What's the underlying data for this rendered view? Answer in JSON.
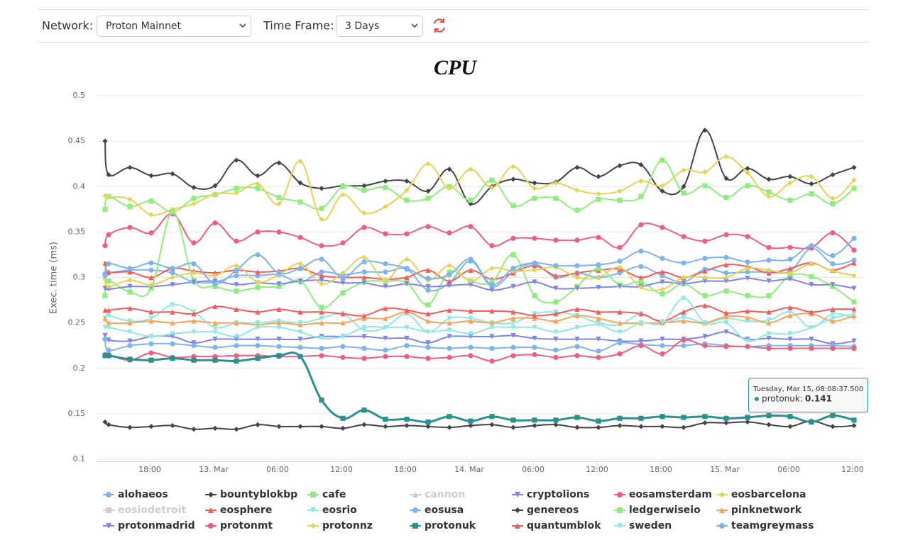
{
  "controls": {
    "network_label": "Network:",
    "network": "Proton Mainnet",
    "timeframe_label": "Time Frame:",
    "timeframe": "3 Days"
  },
  "chart_data": {
    "type": "line",
    "title": "CPU",
    "y_label": "Exec. time (ms)",
    "grid": true,
    "x": [
      "Mar 12, 13:48",
      "Mar 12, 14:08",
      "Mar 12, 16:08",
      "Mar 12, 18:08",
      "Mar 12, 20:08",
      "Mar 12, 22:08",
      "Mar 13, 00:08",
      "Mar 13, 02:08",
      "Mar 13, 04:08",
      "Mar 13, 06:08",
      "Mar 13, 08:08",
      "Mar 13, 10:08",
      "Mar 13, 12:08",
      "Mar 13, 14:08",
      "Mar 13, 16:08",
      "Mar 13, 18:08",
      "Mar 13, 20:08",
      "Mar 13, 22:08",
      "Mar 14, 00:08",
      "Mar 14, 02:08",
      "Mar 14, 04:08",
      "Mar 14, 06:08",
      "Mar 14, 08:08",
      "Mar 14, 10:08",
      "Mar 14, 12:08",
      "Mar 14, 14:08",
      "Mar 14, 16:08",
      "Mar 14, 18:08",
      "Mar 14, 20:08",
      "Mar 14, 22:08",
      "Mar 15, 00:08",
      "Mar 15, 02:08",
      "Mar 15, 04:08",
      "Mar 15, 06:08",
      "Mar 15, 08:08",
      "Mar 15, 10:08",
      "Mar 15, 12:08"
    ],
    "xlim": [
      "Mar 12, 13:00",
      "Mar 15, 13:00"
    ],
    "xticks": [
      {
        "value": "Mar 12, 18:00",
        "label": "18:00"
      },
      {
        "value": "Mar 13, 00:00",
        "label": "13. Mar"
      },
      {
        "value": "Mar 13, 06:00",
        "label": "06:00"
      },
      {
        "value": "Mar 13, 12:00",
        "label": "12:00"
      },
      {
        "value": "Mar 13, 18:00",
        "label": "18:00"
      },
      {
        "value": "Mar 14, 00:00",
        "label": "14. Mar"
      },
      {
        "value": "Mar 14, 06:00",
        "label": "06:00"
      },
      {
        "value": "Mar 14, 12:00",
        "label": "12:00"
      },
      {
        "value": "Mar 14, 18:00",
        "label": "18:00"
      },
      {
        "value": "Mar 15, 00:00",
        "label": "15. Mar"
      },
      {
        "value": "Mar 15, 06:00",
        "label": "06:00"
      },
      {
        "value": "Mar 15, 12:00",
        "label": "12:00"
      }
    ],
    "ylim": [
      0.1,
      0.5
    ],
    "yticks": [
      0.1,
      0.15,
      0.2,
      0.25,
      0.3,
      0.35,
      0.4,
      0.45,
      0.5
    ],
    "tooltip": {
      "title": "Tuesday, Mar 15, 08:08:37.500",
      "label": "protonuk:",
      "value": 0.141
    },
    "series": [
      {
        "name": "alohaeos",
        "color": "#7cb5ec",
        "marker": "circle",
        "visible": true,
        "values": [
          0.304,
          0.305,
          0.308,
          0.308,
          0.305,
          0.295,
          0.295,
          0.302,
          0.302,
          0.303,
          0.295,
          0.306,
          0.303,
          0.306,
          0.306,
          0.309,
          0.286,
          0.294,
          0.318,
          0.29,
          0.306,
          0.315,
          0.3,
          0.305,
          0.3,
          0.305,
          0.312,
          0.302,
          0.295,
          0.309,
          0.305,
          0.306,
          0.306,
          0.307,
          0.332,
          0.315,
          0.319
        ]
      },
      {
        "name": "bountyblokbp",
        "color": "#434348",
        "marker": "diamond",
        "visible": true,
        "values": [
          0.45,
          0.413,
          0.421,
          0.412,
          0.414,
          0.399,
          0.401,
          0.429,
          0.412,
          0.426,
          0.404,
          0.398,
          0.401,
          0.401,
          0.406,
          0.406,
          0.395,
          0.419,
          0.381,
          0.4,
          0.408,
          0.404,
          0.405,
          0.421,
          0.411,
          0.423,
          0.424,
          0.395,
          0.4,
          0.462,
          0.409,
          0.42,
          0.408,
          0.411,
          0.403,
          0.413,
          0.421
        ]
      },
      {
        "name": "cafe",
        "color": "#90ed7d",
        "marker": "square",
        "visible": true,
        "values": [
          0.375,
          0.389,
          0.378,
          0.384,
          0.372,
          0.387,
          0.391,
          0.398,
          0.398,
          0.388,
          0.383,
          0.376,
          0.4,
          0.396,
          0.399,
          0.385,
          0.387,
          0.4,
          0.385,
          0.407,
          0.379,
          0.387,
          0.387,
          0.374,
          0.386,
          0.385,
          0.389,
          0.429,
          0.393,
          0.401,
          0.388,
          0.401,
          0.394,
          0.385,
          0.392,
          0.381,
          0.398
        ]
      },
      {
        "name": "cannon",
        "color": "#f7a35c",
        "marker": "triangle",
        "visible": false,
        "values": [
          null,
          null,
          null,
          null,
          null,
          null,
          null,
          null,
          null,
          null,
          null,
          null,
          null,
          null,
          null,
          null,
          null,
          null,
          null,
          null,
          null,
          null,
          null,
          null,
          null,
          null,
          null,
          null,
          null,
          null,
          null,
          null,
          null,
          null,
          null,
          null,
          null
        ]
      },
      {
        "name": "cryptolions",
        "color": "#8085e9",
        "marker": "triangle-down",
        "visible": true,
        "values": [
          0.236,
          0.231,
          0.23,
          0.235,
          0.235,
          0.228,
          0.232,
          0.232,
          0.232,
          0.232,
          0.232,
          0.235,
          0.235,
          0.235,
          0.233,
          0.233,
          0.228,
          0.235,
          0.235,
          0.235,
          0.236,
          0.233,
          0.232,
          0.232,
          0.232,
          0.23,
          0.23,
          0.232,
          0.232,
          0.235,
          0.24,
          0.232,
          0.233,
          0.232,
          0.232,
          0.227,
          0.23
        ]
      },
      {
        "name": "eosamsterdam",
        "color": "#f15c80",
        "marker": "circle",
        "visible": true,
        "values": [
          0.335,
          0.347,
          0.355,
          0.349,
          0.37,
          0.338,
          0.36,
          0.34,
          0.35,
          0.35,
          0.344,
          0.335,
          0.338,
          0.355,
          0.348,
          0.348,
          0.356,
          0.349,
          0.356,
          0.335,
          0.343,
          0.343,
          0.341,
          0.341,
          0.344,
          0.333,
          0.358,
          0.355,
          0.345,
          0.34,
          0.347,
          0.345,
          0.333,
          0.333,
          0.333,
          0.349,
          0.33
        ]
      },
      {
        "name": "eosbarcelona",
        "color": "#e4d354",
        "marker": "diamond",
        "visible": true,
        "values": [
          0.39,
          0.389,
          0.386,
          0.369,
          0.375,
          0.381,
          0.392,
          0.393,
          0.403,
          0.381,
          0.428,
          0.364,
          0.391,
          0.371,
          0.378,
          0.396,
          0.425,
          0.398,
          0.419,
          0.399,
          0.422,
          0.398,
          0.404,
          0.396,
          0.392,
          0.395,
          0.406,
          0.401,
          0.418,
          0.416,
          0.433,
          0.415,
          0.389,
          0.404,
          0.411,
          0.387,
          0.407
        ]
      },
      {
        "name": "eosiodetroit",
        "color": "#2b908f",
        "marker": "square",
        "visible": false,
        "values": [
          null,
          null,
          null,
          null,
          null,
          null,
          null,
          null,
          null,
          null,
          null,
          null,
          null,
          null,
          null,
          null,
          null,
          null,
          null,
          null,
          null,
          null,
          null,
          null,
          null,
          null,
          null,
          null,
          null,
          null,
          null,
          null,
          null,
          null,
          null,
          null,
          null
        ]
      },
      {
        "name": "eosphere",
        "color": "#f45b5b",
        "marker": "triangle",
        "visible": true,
        "values": [
          0.316,
          0.306,
          0.306,
          0.3,
          0.31,
          0.307,
          0.305,
          0.308,
          0.306,
          0.307,
          0.31,
          0.302,
          0.3,
          0.3,
          0.298,
          0.3,
          0.308,
          0.296,
          0.308,
          0.298,
          0.305,
          0.313,
          0.302,
          0.305,
          0.308,
          0.309,
          0.3,
          0.306,
          0.3,
          0.307,
          0.314,
          0.312,
          0.305,
          0.31,
          0.316,
          0.308,
          0.316
        ]
      },
      {
        "name": "eosrio",
        "color": "#91e8e1",
        "marker": "triangle-down",
        "visible": true,
        "values": [
          0.255,
          0.258,
          0.252,
          0.255,
          0.27,
          0.262,
          0.245,
          0.25,
          0.25,
          0.252,
          0.25,
          0.255,
          0.26,
          0.242,
          0.245,
          0.26,
          0.24,
          0.255,
          0.255,
          0.25,
          0.25,
          0.26,
          0.262,
          0.258,
          0.25,
          0.248,
          0.26,
          0.25,
          0.256,
          0.25,
          0.255,
          0.252,
          0.253,
          0.262,
          0.245,
          0.26,
          0.255
        ]
      },
      {
        "name": "eosusa",
        "color": "#7cb5ec",
        "marker": "circle",
        "visible": true,
        "values": [
          0.232,
          0.22,
          0.225,
          0.227,
          0.227,
          0.225,
          0.223,
          0.225,
          0.225,
          0.224,
          0.223,
          0.222,
          0.224,
          0.222,
          0.22,
          0.225,
          0.223,
          0.222,
          0.223,
          0.222,
          0.223,
          0.223,
          0.22,
          0.224,
          0.219,
          0.228,
          0.226,
          0.225,
          0.225,
          0.227,
          0.225,
          0.224,
          0.225,
          0.225,
          0.225,
          0.225,
          0.224
        ]
      },
      {
        "name": "genereos",
        "color": "#434348",
        "marker": "diamond",
        "visible": true,
        "values": [
          0.141,
          0.138,
          0.135,
          0.136,
          0.137,
          0.133,
          0.134,
          0.133,
          0.138,
          0.136,
          0.136,
          0.136,
          0.134,
          0.138,
          0.136,
          0.137,
          0.136,
          0.135,
          0.137,
          0.138,
          0.135,
          0.137,
          0.138,
          0.135,
          0.135,
          0.137,
          0.136,
          0.136,
          0.135,
          0.14,
          0.14,
          0.141,
          0.138,
          0.136,
          0.142,
          0.136,
          0.137
        ]
      },
      {
        "name": "ledgerwiseio",
        "color": "#90ed7d",
        "marker": "square",
        "visible": true,
        "values": [
          0.28,
          0.296,
          0.284,
          0.288,
          0.372,
          0.297,
          0.29,
          0.285,
          0.289,
          0.29,
          0.296,
          0.267,
          0.283,
          0.295,
          0.296,
          0.294,
          0.27,
          0.306,
          0.296,
          0.295,
          0.325,
          0.28,
          0.273,
          0.29,
          0.31,
          0.292,
          0.295,
          0.282,
          0.293,
          0.28,
          0.285,
          0.28,
          0.28,
          0.302,
          0.301,
          0.29,
          0.273
        ]
      },
      {
        "name": "pinknetwork",
        "color": "#f7a35c",
        "marker": "triangle",
        "visible": true,
        "values": [
          0.255,
          0.25,
          0.25,
          0.252,
          0.25,
          0.252,
          0.25,
          0.25,
          0.248,
          0.25,
          0.248,
          0.25,
          0.25,
          0.255,
          0.255,
          0.262,
          0.252,
          0.25,
          0.252,
          0.25,
          0.255,
          0.255,
          0.252,
          0.258,
          0.255,
          0.25,
          0.25,
          0.25,
          0.252,
          0.25,
          0.257,
          0.256,
          0.25,
          0.258,
          0.26,
          0.252,
          0.258
        ]
      },
      {
        "name": "protonmadrid",
        "color": "#8085e9",
        "marker": "triangle-down",
        "visible": true,
        "values": [
          0.288,
          0.287,
          0.29,
          0.29,
          0.292,
          0.295,
          0.296,
          0.292,
          0.294,
          0.293,
          0.296,
          0.297,
          0.294,
          0.294,
          0.29,
          0.293,
          0.29,
          0.291,
          0.292,
          0.286,
          0.29,
          0.295,
          0.288,
          0.288,
          0.289,
          0.29,
          0.29,
          0.295,
          0.293,
          0.296,
          0.296,
          0.299,
          0.296,
          0.298,
          0.292,
          0.292,
          0.288
        ]
      },
      {
        "name": "protonmt",
        "color": "#f15c80",
        "marker": "circle",
        "visible": true,
        "values": [
          0.215,
          0.215,
          0.209,
          0.217,
          0.212,
          0.213,
          0.213,
          0.214,
          0.214,
          0.213,
          0.213,
          0.214,
          0.212,
          0.211,
          0.213,
          0.213,
          0.211,
          0.212,
          0.214,
          0.208,
          0.214,
          0.215,
          0.212,
          0.214,
          0.212,
          0.216,
          0.225,
          0.216,
          0.231,
          0.225,
          0.224,
          0.224,
          0.222,
          0.222,
          0.222,
          0.222,
          0.222
        ]
      },
      {
        "name": "protonnz",
        "color": "#e4d354",
        "marker": "diamond",
        "visible": true,
        "values": [
          0.298,
          0.29,
          0.297,
          0.292,
          0.3,
          0.305,
          0.302,
          0.313,
          0.295,
          0.303,
          0.315,
          0.293,
          0.305,
          0.322,
          0.297,
          0.32,
          0.297,
          0.313,
          0.296,
          0.31,
          0.307,
          0.308,
          0.311,
          0.3,
          0.3,
          0.311,
          0.289,
          0.287,
          0.3,
          0.3,
          0.3,
          0.31,
          0.308,
          0.305,
          0.315,
          0.307,
          0.302
        ]
      },
      {
        "name": "protonuk",
        "color": "#2b908f",
        "marker": "square",
        "visible": true,
        "highlight": true,
        "values": [
          0.214,
          0.214,
          0.21,
          0.209,
          0.211,
          0.209,
          0.209,
          0.208,
          0.211,
          0.214,
          0.213,
          0.165,
          0.145,
          0.154,
          0.144,
          0.144,
          0.141,
          0.147,
          0.142,
          0.147,
          0.143,
          0.143,
          0.143,
          0.146,
          0.142,
          0.145,
          0.145,
          0.147,
          0.146,
          0.147,
          0.145,
          0.146,
          0.148,
          0.147,
          0.141,
          0.148,
          0.143
        ]
      },
      {
        "name": "quantumblok",
        "color": "#f45b5b",
        "marker": "triangle",
        "visible": true,
        "values": [
          0.264,
          0.264,
          0.266,
          0.262,
          0.262,
          0.26,
          0.268,
          0.265,
          0.262,
          0.265,
          0.262,
          0.262,
          0.26,
          0.258,
          0.266,
          0.264,
          0.26,
          0.264,
          0.263,
          0.263,
          0.262,
          0.258,
          0.26,
          0.265,
          0.262,
          0.262,
          0.26,
          0.252,
          0.262,
          0.269,
          0.261,
          0.263,
          0.262,
          0.267,
          0.262,
          0.265,
          0.265
        ]
      },
      {
        "name": "sweden",
        "color": "#91e8e1",
        "marker": "triangle-down",
        "visible": true,
        "values": [
          0.245,
          0.245,
          0.24,
          0.235,
          0.238,
          0.24,
          0.24,
          0.235,
          0.245,
          0.245,
          0.24,
          0.233,
          0.235,
          0.245,
          0.245,
          0.245,
          0.24,
          0.242,
          0.238,
          0.245,
          0.245,
          0.245,
          0.24,
          0.245,
          0.248,
          0.24,
          0.25,
          0.25,
          0.277,
          0.25,
          0.25,
          0.23,
          0.238,
          0.238,
          0.245,
          0.255,
          0.26
        ]
      },
      {
        "name": "teamgreymass",
        "color": "#7cb5ec",
        "marker": "circle",
        "visible": true,
        "values": [
          0.302,
          0.315,
          0.31,
          0.316,
          0.31,
          0.315,
          0.293,
          0.308,
          0.325,
          0.305,
          0.31,
          0.32,
          0.3,
          0.317,
          0.315,
          0.31,
          0.299,
          0.303,
          0.32,
          0.292,
          0.31,
          0.316,
          0.313,
          0.313,
          0.314,
          0.318,
          0.329,
          0.321,
          0.316,
          0.321,
          0.322,
          0.317,
          0.319,
          0.32,
          0.335,
          0.324,
          0.343
        ]
      }
    ]
  }
}
